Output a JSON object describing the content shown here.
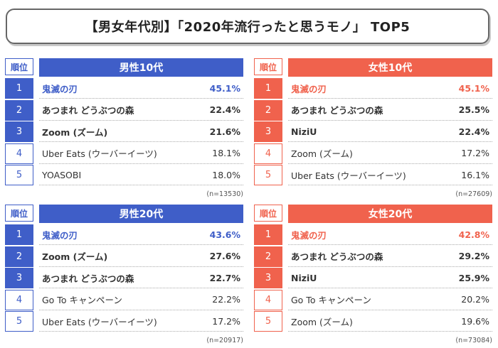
{
  "title": "【男女年代別】「2020年流行ったと思うモノ」 TOP5",
  "rank_header": "順位",
  "colors": {
    "male": "#3f5ec8",
    "female": "#f0624d",
    "text": "#333333"
  },
  "chart_data": [
    {
      "type": "table",
      "group": "男性10代",
      "sample": "(n=13530)",
      "rows": [
        {
          "rank": "1",
          "item": "鬼滅の刃",
          "percent": "45.1%",
          "value": 45.1
        },
        {
          "rank": "2",
          "item": "あつまれ どうぶつの森",
          "percent": "22.4%",
          "value": 22.4
        },
        {
          "rank": "3",
          "item": "Zoom (ズーム)",
          "percent": "21.6%",
          "value": 21.6
        },
        {
          "rank": "4",
          "item": "Uber Eats (ウーバーイーツ)",
          "percent": "18.1%",
          "value": 18.1
        },
        {
          "rank": "5",
          "item": "YOASOBI",
          "percent": "18.0%",
          "value": 18.0
        }
      ]
    },
    {
      "type": "table",
      "group": "女性10代",
      "sample": "(n=27609)",
      "rows": [
        {
          "rank": "1",
          "item": "鬼滅の刃",
          "percent": "45.1%",
          "value": 45.1
        },
        {
          "rank": "2",
          "item": "あつまれ どうぶつの森",
          "percent": "25.5%",
          "value": 25.5
        },
        {
          "rank": "3",
          "item": "NiziU",
          "percent": "22.4%",
          "value": 22.4
        },
        {
          "rank": "4",
          "item": "Zoom (ズーム)",
          "percent": "17.2%",
          "value": 17.2
        },
        {
          "rank": "5",
          "item": "Uber Eats (ウーバーイーツ)",
          "percent": "16.1%",
          "value": 16.1
        }
      ]
    },
    {
      "type": "table",
      "group": "男性20代",
      "sample": "(n=20917)",
      "rows": [
        {
          "rank": "1",
          "item": "鬼滅の刃",
          "percent": "43.6%",
          "value": 43.6
        },
        {
          "rank": "2",
          "item": "Zoom (ズーム)",
          "percent": "27.6%",
          "value": 27.6
        },
        {
          "rank": "3",
          "item": "あつまれ どうぶつの森",
          "percent": "22.7%",
          "value": 22.7
        },
        {
          "rank": "4",
          "item": "Go To キャンペーン",
          "percent": "22.2%",
          "value": 22.2
        },
        {
          "rank": "5",
          "item": "Uber Eats (ウーバーイーツ)",
          "percent": "17.2%",
          "value": 17.2
        }
      ]
    },
    {
      "type": "table",
      "group": "女性20代",
      "sample": "(n=73084)",
      "rows": [
        {
          "rank": "1",
          "item": "鬼滅の刃",
          "percent": "42.8%",
          "value": 42.8
        },
        {
          "rank": "2",
          "item": "あつまれ どうぶつの森",
          "percent": "29.2%",
          "value": 29.2
        },
        {
          "rank": "3",
          "item": "NiziU",
          "percent": "25.9%",
          "value": 25.9
        },
        {
          "rank": "4",
          "item": "Go To キャンペーン",
          "percent": "20.2%",
          "value": 20.2
        },
        {
          "rank": "5",
          "item": "Zoom (ズーム)",
          "percent": "19.6%",
          "value": 19.6
        }
      ]
    }
  ]
}
